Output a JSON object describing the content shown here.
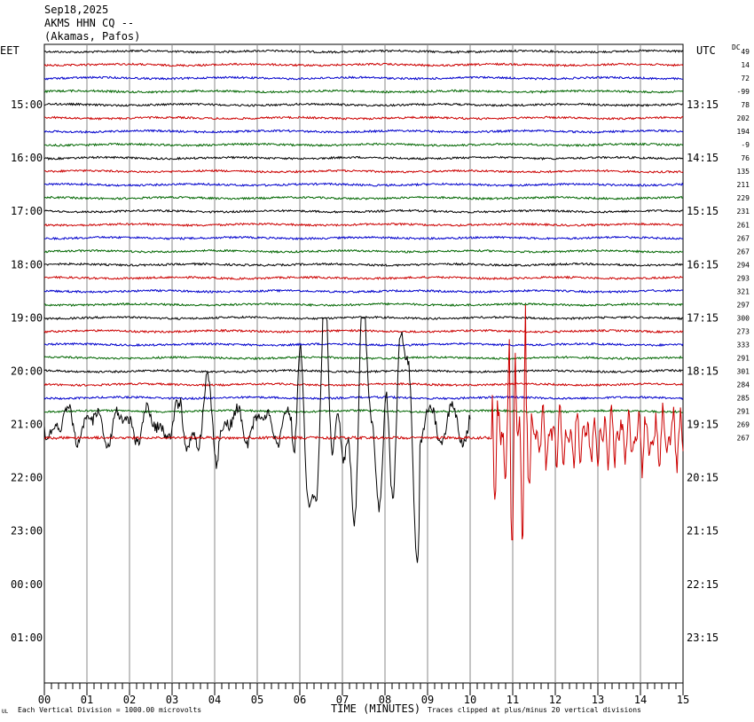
{
  "header": {
    "date": "Sep18,2025",
    "station": "AKMS HHN CQ --",
    "location": "(Akamas, Pafos)"
  },
  "chart_data": {
    "type": "line",
    "title": "",
    "left_timezone": "EET",
    "right_timezone": "UTC",
    "dc_label": "DC",
    "xlabel": "TIME (MINUTES)",
    "xlim": [
      0,
      15
    ],
    "x_ticks": [
      "00",
      "01",
      "02",
      "03",
      "04",
      "05",
      "06",
      "07",
      "08",
      "09",
      "10",
      "11",
      "12",
      "13",
      "14",
      "15"
    ],
    "rows_count": 48,
    "trace_colors": [
      "#000000",
      "#cc0000",
      "#0000cc",
      "#006600"
    ],
    "left_hour_labels": [
      "15:00",
      "16:00",
      "17:00",
      "18:00",
      "19:00",
      "20:00",
      "21:00",
      "22:00",
      "23:00",
      "00:00",
      "01:00"
    ],
    "right_hour_labels": [
      "13:15",
      "14:15",
      "15:15",
      "16:15",
      "17:15",
      "18:15",
      "19:15",
      "20:15",
      "21:15",
      "22:15",
      "23:15"
    ],
    "dc_offsets": [
      "49",
      "14",
      "72",
      "-99",
      "78",
      "202",
      "194",
      "-9",
      "76",
      "135",
      "211",
      "229",
      "231",
      "261",
      "267",
      "267",
      "294",
      "293",
      "321",
      "297",
      "300",
      "273",
      "333",
      "291",
      "301",
      "284",
      "285",
      "291",
      "269",
      "267"
    ],
    "footer_left": "Each Vertical Division = 1000.00 microvolts",
    "footer_right": "Traces clipped at plus/minus 20 vertical divisions",
    "footer_mark": "UL"
  }
}
